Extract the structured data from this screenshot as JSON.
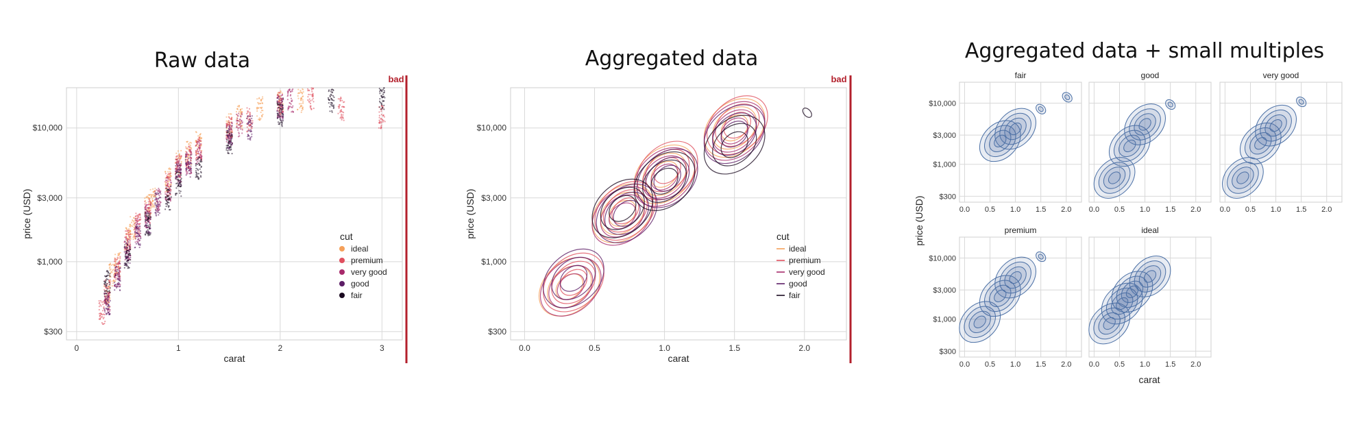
{
  "panels": [
    {
      "title": "Raw data",
      "badge": "bad",
      "chart_data": {
        "type": "scatter",
        "title": "Raw data",
        "xlabel": "carat",
        "ylabel": "price (USD)",
        "x_ticks": [
          "0",
          "1",
          "2",
          "3"
        ],
        "y_ticks": [
          "$300",
          "$1,000",
          "$3,000",
          "$10,000"
        ],
        "xlim": [
          -0.1,
          3.2
        ],
        "ylim": [
          260,
          20000
        ],
        "yscale": "log",
        "grid": true,
        "legend": {
          "title": "cut",
          "position": "right",
          "items": [
            {
              "label": "ideal",
              "color": "#f5a05a"
            },
            {
              "label": "premium",
              "color": "#e0505e"
            },
            {
              "label": "very good",
              "color": "#a72a6b"
            },
            {
              "label": "good",
              "color": "#5c1e66"
            },
            {
              "label": "fair",
              "color": "#1a0a20"
            }
          ]
        },
        "series": [
          {
            "name": "ideal",
            "points": [
              [
                0.3,
                550
              ],
              [
                0.35,
                800
              ],
              [
                0.4,
                950
              ],
              [
                0.5,
                1500
              ],
              [
                0.55,
                1800
              ],
              [
                0.7,
                2600
              ],
              [
                0.75,
                3000
              ],
              [
                0.9,
                4100
              ],
              [
                1.0,
                5500
              ],
              [
                1.1,
                6500
              ],
              [
                1.2,
                7800
              ],
              [
                1.5,
                10500
              ],
              [
                1.6,
                12000
              ],
              [
                1.8,
                14000
              ],
              [
                2.0,
                15500
              ],
              [
                2.2,
                16000
              ]
            ]
          },
          {
            "name": "premium",
            "points": [
              [
                0.25,
                420
              ],
              [
                0.3,
                600
              ],
              [
                0.4,
                900
              ],
              [
                0.5,
                1400
              ],
              [
                0.6,
                1900
              ],
              [
                0.7,
                2400
              ],
              [
                0.9,
                3800
              ],
              [
                1.0,
                5200
              ],
              [
                1.1,
                6000
              ],
              [
                1.2,
                7000
              ],
              [
                1.5,
                9800
              ],
              [
                1.7,
                11500
              ],
              [
                2.0,
                15000
              ],
              [
                2.3,
                16500
              ],
              [
                2.6,
                14000
              ],
              [
                3.0,
                12000
              ]
            ]
          },
          {
            "name": "very good",
            "points": [
              [
                0.3,
                500
              ],
              [
                0.4,
                800
              ],
              [
                0.5,
                1250
              ],
              [
                0.6,
                1700
              ],
              [
                0.7,
                2200
              ],
              [
                0.8,
                2900
              ],
              [
                0.9,
                3500
              ],
              [
                1.0,
                4800
              ],
              [
                1.1,
                5600
              ],
              [
                1.2,
                6500
              ],
              [
                1.5,
                9000
              ],
              [
                1.6,
                10500
              ],
              [
                2.0,
                14500
              ],
              [
                2.1,
                16000
              ]
            ]
          },
          {
            "name": "good",
            "points": [
              [
                0.3,
                480
              ],
              [
                0.4,
                750
              ],
              [
                0.5,
                1150
              ],
              [
                0.6,
                1500
              ],
              [
                0.7,
                2000
              ],
              [
                0.8,
                2700
              ],
              [
                1.0,
                4500
              ],
              [
                1.1,
                5200
              ],
              [
                1.5,
                8500
              ],
              [
                1.7,
                10000
              ],
              [
                2.0,
                14000
              ]
            ]
          },
          {
            "name": "fair",
            "points": [
              [
                0.3,
                700
              ],
              [
                0.5,
                1100
              ],
              [
                0.7,
                1900
              ],
              [
                0.9,
                3000
              ],
              [
                1.0,
                3800
              ],
              [
                1.2,
                5000
              ],
              [
                1.5,
                7800
              ],
              [
                2.0,
                12500
              ],
              [
                2.5,
                16000
              ],
              [
                3.0,
                16500
              ]
            ]
          }
        ]
      }
    },
    {
      "title": "Aggregated data",
      "badge": "bad",
      "chart_data": {
        "type": "line",
        "title": "Aggregated data",
        "xlabel": "carat",
        "ylabel": "price (USD)",
        "x_ticks": [
          "0.0",
          "0.5",
          "1.0",
          "1.5",
          "2.0"
        ],
        "y_ticks": [
          "$300",
          "$1,000",
          "$3,000",
          "$10,000"
        ],
        "xlim": [
          -0.1,
          2.3
        ],
        "ylim": [
          260,
          20000
        ],
        "yscale": "log",
        "grid": true,
        "legend": {
          "title": "cut",
          "position": "right",
          "items": [
            {
              "label": "ideal",
              "color": "#f5a05a"
            },
            {
              "label": "premium",
              "color": "#e0505e"
            },
            {
              "label": "very good",
              "color": "#a72a6b"
            },
            {
              "label": "good",
              "color": "#5c1e66"
            },
            {
              "label": "fair",
              "color": "#1a0a20"
            }
          ]
        },
        "density_centers": [
          {
            "name": "ideal",
            "centers": [
              [
                0.32,
                650
              ],
              [
                0.7,
                2300
              ],
              [
                1.0,
                4500
              ],
              [
                1.5,
                10000
              ]
            ]
          },
          {
            "name": "premium",
            "centers": [
              [
                0.35,
                700
              ],
              [
                0.72,
                2400
              ],
              [
                1.02,
                4800
              ],
              [
                1.52,
                10500
              ]
            ]
          },
          {
            "name": "very good",
            "centers": [
              [
                0.33,
                650
              ],
              [
                0.7,
                2200
              ],
              [
                1.0,
                4300
              ],
              [
                1.5,
                9500
              ]
            ]
          },
          {
            "name": "good",
            "centers": [
              [
                0.35,
                750
              ],
              [
                0.73,
                2300
              ],
              [
                1.02,
                4200
              ],
              [
                1.5,
                9000
              ]
            ]
          },
          {
            "name": "fair",
            "centers": [
              [
                0.7,
                2500
              ],
              [
                1.0,
                4000
              ],
              [
                1.5,
                7500
              ],
              [
                2.02,
                13000
              ]
            ]
          }
        ]
      }
    },
    {
      "title": "Aggregated data + small multiples",
      "chart_data": {
        "type": "area",
        "title": "Aggregated data + small multiples",
        "xlabel": "carat",
        "ylabel": "price (USD)",
        "x_ticks": [
          "0.0",
          "0.5",
          "1.0",
          "1.5",
          "2.0"
        ],
        "y_ticks": [
          "$300",
          "$1,000",
          "$3,000",
          "$10,000"
        ],
        "xlim": [
          -0.1,
          2.3
        ],
        "ylim": [
          240,
          22000
        ],
        "yscale": "log",
        "grid": true,
        "color": "#4a6fa5",
        "facets": [
          {
            "name": "fair",
            "centers": [
              [
                0.7,
                2400
              ],
              [
                1.0,
                3800
              ],
              [
                1.5,
                8000
              ],
              [
                2.02,
                12500
              ]
            ]
          },
          {
            "name": "good",
            "centers": [
              [
                0.4,
                600
              ],
              [
                0.7,
                2000
              ],
              [
                1.0,
                4500
              ],
              [
                1.5,
                9500
              ]
            ]
          },
          {
            "name": "very good",
            "centers": [
              [
                0.35,
                600
              ],
              [
                0.7,
                2200
              ],
              [
                1.0,
                4300
              ],
              [
                1.5,
                10500
              ]
            ]
          },
          {
            "name": "premium",
            "centers": [
              [
                0.3,
                900
              ],
              [
                0.7,
                2400
              ],
              [
                1.0,
                4800
              ],
              [
                1.5,
                10500
              ]
            ]
          },
          {
            "name": "ideal",
            "centers": [
              [
                0.3,
                850
              ],
              [
                0.55,
                1800
              ],
              [
                0.75,
                2800
              ],
              [
                1.1,
                5000
              ]
            ]
          }
        ]
      }
    }
  ]
}
